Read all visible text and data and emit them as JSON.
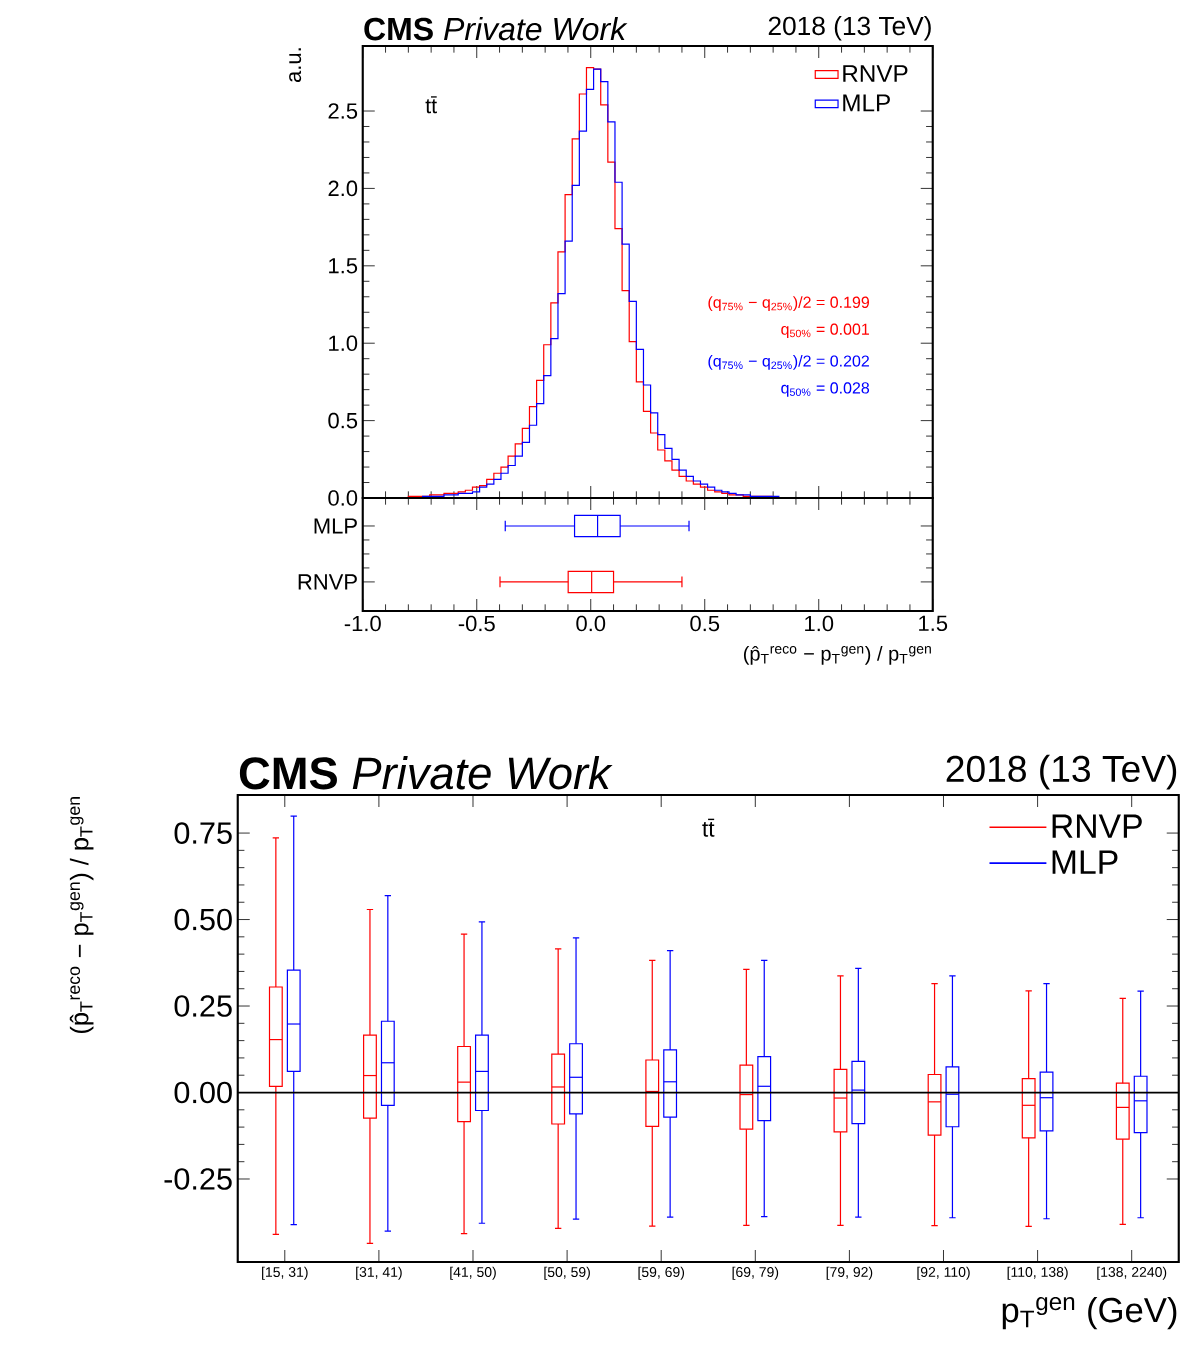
{
  "chart_data": [
    {
      "type": "histogram",
      "title": "**CMS** *Private Work*",
      "subtitle": "2018 (13 TeV)",
      "ylabel": "a.u.",
      "bins": [
        -0.8,
        -0.76875,
        -0.7375,
        -0.70625,
        -0.675,
        -0.64375,
        -0.6125,
        -0.58125,
        -0.55,
        -0.51875,
        -0.4875,
        -0.45625,
        -0.425,
        -0.39375,
        -0.3625,
        -0.33125,
        -0.3,
        -0.26875,
        -0.2375,
        -0.20625,
        -0.175,
        -0.14375,
        -0.1125,
        -0.08125,
        -0.05,
        -0.01875,
        0.0125,
        0.04375,
        0.075,
        0.10625,
        0.1375,
        0.16875,
        0.2,
        0.23125,
        0.2625,
        0.29375,
        0.325,
        0.35625,
        0.3875,
        0.41875,
        0.45,
        0.48125,
        0.5125,
        0.54375,
        0.575,
        0.60625,
        0.6375,
        0.66875,
        0.7,
        0.73125,
        0.7625,
        0.79375,
        0.825,
        0.85625,
        0.8875
      ],
      "series": [
        {
          "name": "RNVP",
          "color": "#ff0000",
          "values": [
            0.01,
            0.01,
            0.01,
            0.02,
            0.02,
            0.03,
            0.03,
            0.04,
            0.05,
            0.07,
            0.08,
            0.12,
            0.16,
            0.2,
            0.27,
            0.35,
            0.45,
            0.59,
            0.76,
            0.99,
            1.26,
            1.59,
            1.96,
            2.32,
            2.61,
            2.78,
            2.77,
            2.54,
            2.17,
            1.74,
            1.34,
            1.01,
            0.75,
            0.56,
            0.42,
            0.31,
            0.24,
            0.18,
            0.14,
            0.11,
            0.09,
            0.07,
            0.05,
            0.04,
            0.03,
            0.02,
            0.02,
            0.01,
            0.01,
            0.01,
            0.01,
            0,
            0,
            0
          ]
        },
        {
          "name": "MLP",
          "color": "#0000ff",
          "values": [
            0,
            0,
            0.01,
            0.01,
            0.01,
            0.02,
            0.02,
            0.03,
            0.03,
            0.04,
            0.07,
            0.09,
            0.12,
            0.16,
            0.21,
            0.27,
            0.36,
            0.47,
            0.61,
            0.79,
            1.03,
            1.32,
            1.66,
            2.02,
            2.37,
            2.64,
            2.77,
            2.69,
            2.43,
            2.04,
            1.64,
            1.27,
            0.96,
            0.73,
            0.55,
            0.41,
            0.32,
            0.25,
            0.18,
            0.14,
            0.11,
            0.09,
            0.07,
            0.05,
            0.04,
            0.03,
            0.02,
            0.02,
            0.01,
            0.01,
            0.01,
            0.01,
            0,
            0
          ]
        }
      ],
      "xlim": [
        -1,
        1.5
      ],
      "ylim": [
        0,
        2.92
      ],
      "xticks": [
        -1,
        -0.5,
        0,
        0.5,
        1,
        1.5
      ],
      "yticks": [
        {
          "value": 0,
          "label": "0.0"
        },
        0.5,
        {
          "value": 1,
          "label": "1.0"
        },
        1.5,
        {
          "value": 2,
          "label": "2.0"
        },
        2.5
      ],
      "tick_labels": "y",
      "legend": "top right",
      "annotations": [
        "tt̄",
        "(q$_{75%}$ − q$_{25%}$)/2 = 0.199",
        "q$_{50%}$ = 0.001",
        "(q$_{75%}$ − q$_{25%}$)/2 = 0.202",
        "q$_{50%}$ = 0.028"
      ]
    },
    {
      "type": "box",
      "orientation": "horizontal",
      "categories": [
        "MLP",
        "RNVP"
      ],
      "colors": [
        "#0000ff",
        "#ff0000"
      ],
      "xlabel": "(p̂$_{T}$$^{reco}$ − p$_{T}$$^{gen}$) / p$_{T}$$^{gen}$",
      "boxes": [
        {
          "low": -0.375,
          "q1": -0.071,
          "median": 0.03,
          "q3": 0.129,
          "high": 0.431
        },
        {
          "low": -0.398,
          "q1": -0.099,
          "median": 0.004,
          "q3": 0.1,
          "high": 0.4
        }
      ],
      "xlim": [
        -1,
        1.5
      ],
      "xticks": [
        {
          "value": -1,
          "label": "-1.0"
        },
        -0.5,
        {
          "value": 0,
          "label": "0.0"
        },
        0.5,
        {
          "value": 1,
          "label": "1.0"
        },
        1.5
      ]
    },
    {
      "type": "box",
      "title": "**CMS** *Private Work*",
      "subtitle": "2018 (13 TeV)",
      "xlabel": "p$_{T}$$^{gen}$ (GeV)",
      "ylabel": "(p̂$_{T}$$^{reco}$ − p$_{T}$$^{gen}$) / p$_{T}$$^{gen}$",
      "categories": [
        "[15, 31)",
        "[31, 41)",
        "[41, 50)",
        "[50, 59)",
        "[59, 69)",
        "[69, 79)",
        "[79, 92)",
        "[92, 110)",
        "[110, 138)",
        "[138, 2240)"
      ],
      "series": [
        {
          "name": "RNVP",
          "color": "#ff0000",
          "boxes": [
            {
              "low": -0.41,
              "q1": 0.018,
              "median": 0.153,
              "q3": 0.305,
              "high": 0.736
            },
            {
              "low": -0.436,
              "q1": -0.074,
              "median": 0.049,
              "q3": 0.166,
              "high": 0.529
            },
            {
              "low": -0.408,
              "q1": -0.084,
              "median": 0.03,
              "q3": 0.133,
              "high": 0.458
            },
            {
              "low": -0.393,
              "q1": -0.091,
              "median": 0.016,
              "q3": 0.111,
              "high": 0.415
            },
            {
              "low": -0.386,
              "q1": -0.098,
              "median": 0.003,
              "q3": 0.094,
              "high": 0.382
            },
            {
              "low": -0.384,
              "q1": -0.106,
              "median": -0.006,
              "q3": 0.079,
              "high": 0.356
            },
            {
              "low": -0.384,
              "q1": -0.114,
              "median": -0.016,
              "q3": 0.067,
              "high": 0.337
            },
            {
              "low": -0.385,
              "q1": -0.123,
              "median": -0.027,
              "q3": 0.052,
              "high": 0.315
            },
            {
              "low": -0.387,
              "q1": -0.131,
              "median": -0.037,
              "q3": 0.04,
              "high": 0.294
            },
            {
              "low": -0.381,
              "q1": -0.135,
              "median": -0.043,
              "q3": 0.027,
              "high": 0.272
            }
          ]
        },
        {
          "name": "MLP",
          "color": "#0000ff",
          "boxes": [
            {
              "low": -0.382,
              "q1": 0.061,
              "median": 0.198,
              "q3": 0.354,
              "high": 0.799
            },
            {
              "low": -0.401,
              "q1": -0.037,
              "median": 0.086,
              "q3": 0.206,
              "high": 0.569
            },
            {
              "low": -0.378,
              "q1": -0.052,
              "median": 0.061,
              "q3": 0.166,
              "high": 0.493
            },
            {
              "low": -0.366,
              "q1": -0.062,
              "median": 0.044,
              "q3": 0.141,
              "high": 0.447
            },
            {
              "low": -0.36,
              "q1": -0.071,
              "median": 0.031,
              "q3": 0.123,
              "high": 0.41
            },
            {
              "low": -0.359,
              "q1": -0.081,
              "median": 0.018,
              "q3": 0.104,
              "high": 0.382
            },
            {
              "low": -0.36,
              "q1": -0.09,
              "median": 0.007,
              "q3": 0.09,
              "high": 0.359
            },
            {
              "low": -0.362,
              "q1": -0.099,
              "median": -0.005,
              "q3": 0.074,
              "high": 0.337
            },
            {
              "low": -0.365,
              "q1": -0.111,
              "median": -0.015,
              "q3": 0.059,
              "high": 0.315
            },
            {
              "low": -0.362,
              "q1": -0.116,
              "median": -0.024,
              "q3": 0.047,
              "high": 0.293
            }
          ]
        }
      ],
      "ylim": [
        -0.49,
        0.86
      ],
      "yticks": [
        0.75,
        {
          "value": 0.5,
          "label": "0.50"
        },
        0.25,
        {
          "value": 0,
          "label": "0.00"
        },
        -0.25
      ],
      "legend": "top right",
      "ref_lines": [
        {
          "axis": "y",
          "value": 0,
          "color": "#000000"
        }
      ],
      "annotations": [
        "tt̄"
      ]
    }
  ]
}
